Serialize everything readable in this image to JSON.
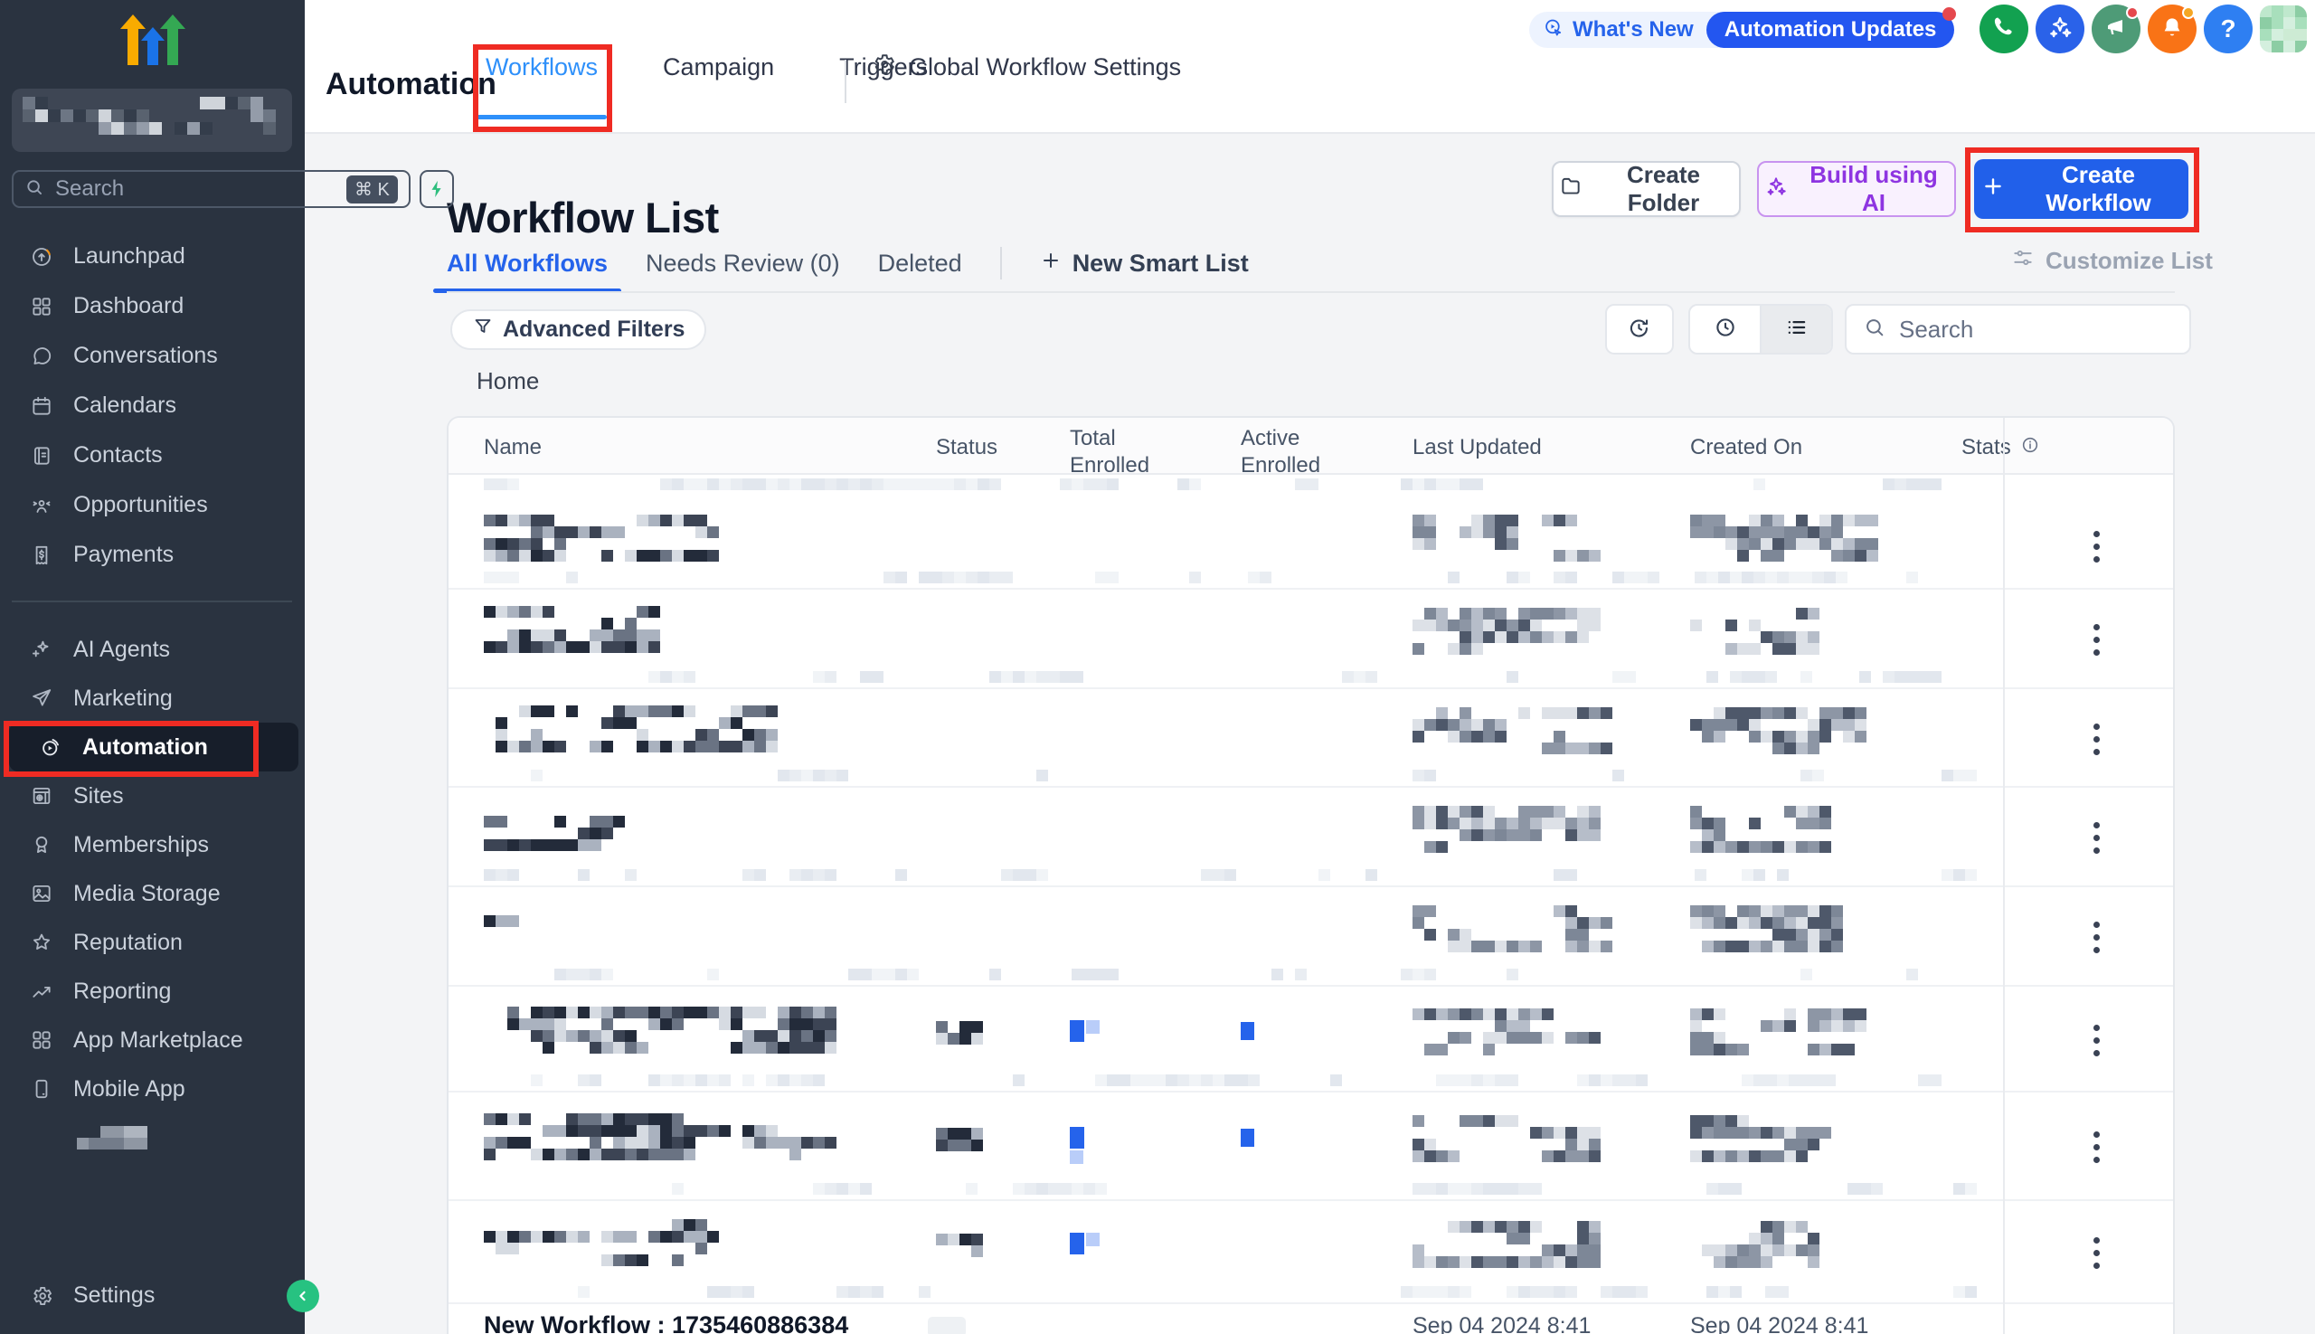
{
  "colors": {
    "accent_blue": "#2160ea",
    "tab_blue": "#2e90fa",
    "purple": "#8e35e1",
    "annotation_red": "#ef2b23",
    "sidebar_bg": "#2a3340",
    "sidebar_selected_bg": "#171e2a",
    "content_bg": "#f3f4f6"
  },
  "sidebar": {
    "logo_name": "highlevel-logo",
    "account_redacted": true,
    "search": {
      "placeholder": "Search",
      "shortcut": "⌘ K"
    },
    "groups": [
      {
        "items": [
          {
            "label": "Launchpad",
            "icon": "launchpad"
          },
          {
            "label": "Dashboard",
            "icon": "dashboard"
          },
          {
            "label": "Conversations",
            "icon": "conversations"
          },
          {
            "label": "Calendars",
            "icon": "calendars"
          },
          {
            "label": "Contacts",
            "icon": "contacts"
          },
          {
            "label": "Opportunities",
            "icon": "opportunities"
          },
          {
            "label": "Payments",
            "icon": "payments"
          }
        ]
      },
      {
        "items": [
          {
            "label": "AI Agents",
            "icon": "ai-agents"
          },
          {
            "label": "Marketing",
            "icon": "marketing"
          },
          {
            "label": "Automation",
            "icon": "automation",
            "active": true,
            "annotated": true
          },
          {
            "label": "Sites",
            "icon": "sites"
          },
          {
            "label": "Memberships",
            "icon": "memberships"
          },
          {
            "label": "Media Storage",
            "icon": "media"
          },
          {
            "label": "Reputation",
            "icon": "reputation"
          },
          {
            "label": "Reporting",
            "icon": "reporting"
          },
          {
            "label": "App Marketplace",
            "icon": "marketplace"
          },
          {
            "label": "Mobile App",
            "icon": "mobile"
          }
        ]
      }
    ],
    "redacted_item": true,
    "settings": {
      "label": "Settings",
      "icon": "settings"
    }
  },
  "topbar": {
    "title": "Automation",
    "tabs": [
      {
        "label": "Workflows",
        "active": true,
        "annotated": true
      },
      {
        "label": "Campaign"
      },
      {
        "label": "Triggers"
      }
    ],
    "settings_link": {
      "label": "Global Workflow Settings",
      "icon": "gear"
    },
    "whats_new": {
      "label": "What's New",
      "badge": "Automation Updates",
      "has_alert_dot": true
    },
    "action_icons": [
      {
        "name": "phone",
        "bg": "#12a150"
      },
      {
        "name": "ai-sparkles",
        "bg": "#2a62e9"
      },
      {
        "name": "megaphone",
        "bg": "#4e9b77",
        "dot": "#e5484d"
      },
      {
        "name": "bell",
        "bg": "#f97316",
        "dot": "#f5a623"
      },
      {
        "name": "help",
        "bg": "#2e7ff2",
        "glyph": "?"
      },
      {
        "name": "avatar",
        "type": "avatar"
      }
    ]
  },
  "page": {
    "title": "Workflow List",
    "actions": [
      {
        "label": "Create Folder",
        "icon": "folder",
        "style": "default"
      },
      {
        "label": "Build using AI",
        "icon": "sparkles",
        "style": "purple"
      },
      {
        "label": "Create Workflow",
        "icon": "plus",
        "style": "primary",
        "annotated": true
      }
    ],
    "tabs": [
      {
        "label": "All Workflows",
        "active": true
      },
      {
        "label": "Needs Review (0)"
      },
      {
        "label": "Deleted"
      }
    ],
    "new_smart_list": {
      "label": "New Smart List",
      "icon": "plus"
    },
    "customize_list": {
      "label": "Customize List",
      "icon": "sliders",
      "disabled": true
    },
    "advanced_filters": {
      "label": "Advanced Filters",
      "icon": "funnel"
    },
    "view_toolbar": {
      "history_icon": "clock-arrow",
      "segments": [
        "clock",
        "list"
      ],
      "active_segment": "list"
    },
    "search_placeholder": "Search",
    "breadcrumb": "Home"
  },
  "table": {
    "headers": [
      "Name",
      "Status",
      "Total Enrolled",
      "Active Enrolled",
      "Last Updated",
      "Created On",
      "Stats"
    ],
    "stats_info_icon": true,
    "redacted_rows": [
      {
        "height": 97,
        "seed": 7,
        "name_w": 270,
        "lu_w": 210,
        "co_w": 220,
        "status": false,
        "total": false,
        "active": false
      },
      {
        "height": 110,
        "seed": 13,
        "name_w": 200,
        "lu_w": 210,
        "co_w": 150,
        "status": false,
        "total": false,
        "active": false
      },
      {
        "height": 109,
        "seed": 21,
        "name_w": 330,
        "lu_w": 230,
        "co_w": 200,
        "status": false,
        "total": false,
        "active": false
      },
      {
        "height": 110,
        "seed": 29,
        "name_w": 160,
        "lu_w": 210,
        "co_w": 160,
        "status": false,
        "total": false,
        "active": false
      },
      {
        "height": 110,
        "seed": 37,
        "name_w": 70,
        "lu_w": 230,
        "co_w": 170,
        "status": false,
        "total": false,
        "active": false
      },
      {
        "height": 117,
        "seed": 45,
        "name_w": 390,
        "lu_w": 210,
        "co_w": 200,
        "status": true,
        "total": true,
        "active": true
      },
      {
        "height": 120,
        "seed": 53,
        "name_w": 400,
        "lu_w": 210,
        "co_w": 160,
        "status": true,
        "total": true,
        "active": true
      },
      {
        "height": 114,
        "seed": 61,
        "name_w": 260,
        "lu_w": 210,
        "co_w": 150,
        "status": true,
        "total": true,
        "active": false
      }
    ],
    "partial_row": {
      "name": "New Workflow : 1735460886384",
      "last_updated": "Sep 04 2024 8:41",
      "created_on": "Sep 04 2024 8:41"
    }
  }
}
